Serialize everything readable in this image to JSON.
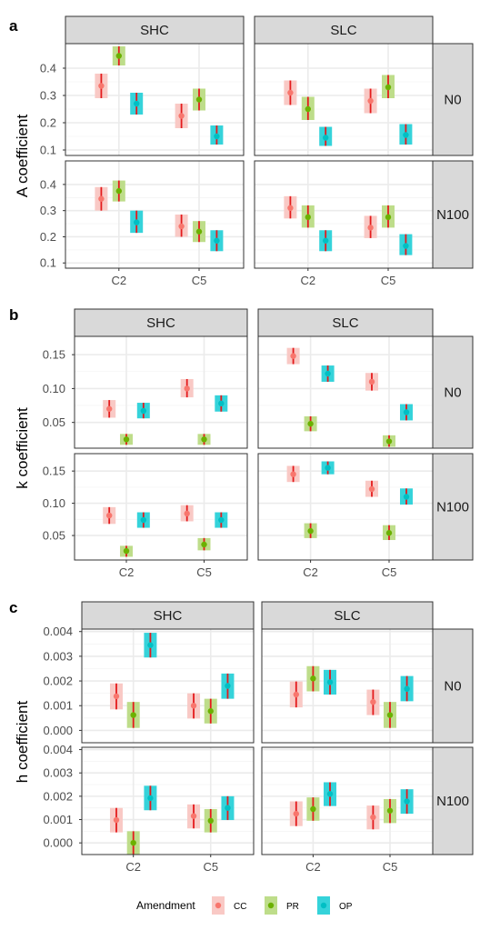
{
  "legend": {
    "title": "Amendment",
    "items": [
      {
        "label": "CC",
        "color": "#F8766D",
        "box": "#F9C9C5"
      },
      {
        "label": "PR",
        "color": "#6BB100",
        "box": "#BEDD8A"
      },
      {
        "label": "OP",
        "color": "#00BFC4",
        "box": "#35D3DA"
      }
    ]
  },
  "chart_data": [
    {
      "panel_letter": "a",
      "type": "pointrange",
      "ylabel": "A coefficient",
      "ylim": [
        0.08,
        0.49
      ],
      "yticks": [
        0.1,
        0.2,
        0.3,
        0.4
      ],
      "ytick_labels": [
        "0.1",
        "0.2",
        "0.3",
        "0.4"
      ],
      "x_categories": [
        "C2",
        "C5"
      ],
      "col_facets": [
        "SHC",
        "SLC"
      ],
      "row_facets": [
        "N0",
        "N100"
      ],
      "cells": [
        {
          "col": 0,
          "row": 0,
          "points": [
            {
              "x": "C2",
              "g": "CC",
              "y": 0.335,
              "lo": 0.29,
              "hi": 0.38
            },
            {
              "x": "C2",
              "g": "PR",
              "y": 0.445,
              "lo": 0.41,
              "hi": 0.48
            },
            {
              "x": "C2",
              "g": "OP",
              "y": 0.27,
              "lo": 0.23,
              "hi": 0.31
            },
            {
              "x": "C5",
              "g": "CC",
              "y": 0.225,
              "lo": 0.18,
              "hi": 0.27
            },
            {
              "x": "C5",
              "g": "PR",
              "y": 0.285,
              "lo": 0.245,
              "hi": 0.325
            },
            {
              "x": "C5",
              "g": "OP",
              "y": 0.15,
              "lo": 0.12,
              "hi": 0.19
            }
          ]
        },
        {
          "col": 1,
          "row": 0,
          "points": [
            {
              "x": "C2",
              "g": "CC",
              "y": 0.31,
              "lo": 0.265,
              "hi": 0.355
            },
            {
              "x": "C2",
              "g": "PR",
              "y": 0.25,
              "lo": 0.21,
              "hi": 0.295
            },
            {
              "x": "C2",
              "g": "OP",
              "y": 0.145,
              "lo": 0.115,
              "hi": 0.185
            },
            {
              "x": "C5",
              "g": "CC",
              "y": 0.28,
              "lo": 0.235,
              "hi": 0.325
            },
            {
              "x": "C5",
              "g": "PR",
              "y": 0.33,
              "lo": 0.29,
              "hi": 0.375
            },
            {
              "x": "C5",
              "g": "OP",
              "y": 0.155,
              "lo": 0.12,
              "hi": 0.195
            }
          ]
        },
        {
          "col": 0,
          "row": 1,
          "points": [
            {
              "x": "C2",
              "g": "CC",
              "y": 0.345,
              "lo": 0.3,
              "hi": 0.39
            },
            {
              "x": "C2",
              "g": "PR",
              "y": 0.375,
              "lo": 0.335,
              "hi": 0.415
            },
            {
              "x": "C2",
              "g": "OP",
              "y": 0.255,
              "lo": 0.215,
              "hi": 0.3
            },
            {
              "x": "C5",
              "g": "CC",
              "y": 0.24,
              "lo": 0.2,
              "hi": 0.285
            },
            {
              "x": "C5",
              "g": "PR",
              "y": 0.22,
              "lo": 0.18,
              "hi": 0.26
            },
            {
              "x": "C5",
              "g": "OP",
              "y": 0.185,
              "lo": 0.145,
              "hi": 0.225
            }
          ]
        },
        {
          "col": 1,
          "row": 1,
          "points": [
            {
              "x": "C2",
              "g": "CC",
              "y": 0.31,
              "lo": 0.27,
              "hi": 0.355
            },
            {
              "x": "C2",
              "g": "PR",
              "y": 0.275,
              "lo": 0.235,
              "hi": 0.32
            },
            {
              "x": "C2",
              "g": "OP",
              "y": 0.185,
              "lo": 0.145,
              "hi": 0.225
            },
            {
              "x": "C5",
              "g": "CC",
              "y": 0.235,
              "lo": 0.195,
              "hi": 0.28
            },
            {
              "x": "C5",
              "g": "PR",
              "y": 0.275,
              "lo": 0.235,
              "hi": 0.32
            },
            {
              "x": "C5",
              "g": "OP",
              "y": 0.165,
              "lo": 0.13,
              "hi": 0.21
            }
          ]
        }
      ]
    },
    {
      "panel_letter": "b",
      "type": "pointrange",
      "ylabel": "k coefficient",
      "ylim": [
        0.012,
        0.177
      ],
      "yticks": [
        0.05,
        0.1,
        0.15
      ],
      "ytick_labels": [
        "0.05",
        "0.10",
        "0.15"
      ],
      "x_categories": [
        "C2",
        "C5"
      ],
      "col_facets": [
        "SHC",
        "SLC"
      ],
      "row_facets": [
        "N0",
        "N100"
      ],
      "cells": [
        {
          "col": 0,
          "row": 0,
          "points": [
            {
              "x": "C2",
              "g": "CC",
              "y": 0.07,
              "lo": 0.057,
              "hi": 0.083
            },
            {
              "x": "C2",
              "g": "PR",
              "y": 0.025,
              "lo": 0.017,
              "hi": 0.033
            },
            {
              "x": "C2",
              "g": "OP",
              "y": 0.067,
              "lo": 0.056,
              "hi": 0.079
            },
            {
              "x": "C5",
              "g": "CC",
              "y": 0.1,
              "lo": 0.087,
              "hi": 0.114
            },
            {
              "x": "C5",
              "g": "PR",
              "y": 0.025,
              "lo": 0.017,
              "hi": 0.033
            },
            {
              "x": "C5",
              "g": "OP",
              "y": 0.078,
              "lo": 0.066,
              "hi": 0.09
            }
          ]
        },
        {
          "col": 1,
          "row": 0,
          "points": [
            {
              "x": "C2",
              "g": "CC",
              "y": 0.148,
              "lo": 0.136,
              "hi": 0.16
            },
            {
              "x": "C2",
              "g": "PR",
              "y": 0.048,
              "lo": 0.037,
              "hi": 0.059
            },
            {
              "x": "C2",
              "g": "OP",
              "y": 0.122,
              "lo": 0.11,
              "hi": 0.134
            },
            {
              "x": "C5",
              "g": "CC",
              "y": 0.11,
              "lo": 0.097,
              "hi": 0.123
            },
            {
              "x": "C5",
              "g": "PR",
              "y": 0.022,
              "lo": 0.014,
              "hi": 0.031
            },
            {
              "x": "C5",
              "g": "OP",
              "y": 0.065,
              "lo": 0.053,
              "hi": 0.077
            }
          ]
        },
        {
          "col": 0,
          "row": 1,
          "points": [
            {
              "x": "C2",
              "g": "CC",
              "y": 0.081,
              "lo": 0.068,
              "hi": 0.094
            },
            {
              "x": "C2",
              "g": "PR",
              "y": 0.026,
              "lo": 0.017,
              "hi": 0.034
            },
            {
              "x": "C2",
              "g": "OP",
              "y": 0.074,
              "lo": 0.062,
              "hi": 0.086
            },
            {
              "x": "C5",
              "g": "CC",
              "y": 0.084,
              "lo": 0.072,
              "hi": 0.097
            },
            {
              "x": "C5",
              "g": "PR",
              "y": 0.036,
              "lo": 0.027,
              "hi": 0.046
            },
            {
              "x": "C5",
              "g": "OP",
              "y": 0.074,
              "lo": 0.062,
              "hi": 0.086
            }
          ]
        },
        {
          "col": 1,
          "row": 1,
          "points": [
            {
              "x": "C2",
              "g": "CC",
              "y": 0.145,
              "lo": 0.133,
              "hi": 0.158
            },
            {
              "x": "C2",
              "g": "PR",
              "y": 0.057,
              "lo": 0.046,
              "hi": 0.069
            },
            {
              "x": "C2",
              "g": "OP",
              "y": 0.155,
              "lo": 0.145,
              "hi": 0.165
            },
            {
              "x": "C5",
              "g": "CC",
              "y": 0.122,
              "lo": 0.11,
              "hi": 0.135
            },
            {
              "x": "C5",
              "g": "PR",
              "y": 0.054,
              "lo": 0.043,
              "hi": 0.066
            },
            {
              "x": "C5",
              "g": "OP",
              "y": 0.11,
              "lo": 0.098,
              "hi": 0.123
            }
          ]
        }
      ]
    },
    {
      "panel_letter": "c",
      "type": "pointrange",
      "ylabel": "h coefficient",
      "ylim": [
        -0.0005,
        0.0041
      ],
      "yticks": [
        0,
        0.001,
        0.002,
        0.003,
        0.004
      ],
      "ytick_labels": [
        "0.000",
        "0.001",
        "0.002",
        "0.003",
        "0.004"
      ],
      "x_categories": [
        "C2",
        "C5"
      ],
      "col_facets": [
        "SHC",
        "SLC"
      ],
      "row_facets": [
        "N0",
        "N100"
      ],
      "cells": [
        {
          "col": 0,
          "row": 0,
          "points": [
            {
              "x": "C2",
              "g": "CC",
              "y": 0.00138,
              "lo": 0.00085,
              "hi": 0.0019
            },
            {
              "x": "C2",
              "g": "PR",
              "y": 0.00062,
              "lo": 0.0001,
              "hi": 0.00115
            },
            {
              "x": "C2",
              "g": "OP",
              "y": 0.00345,
              "lo": 0.00295,
              "hi": 0.00395
            },
            {
              "x": "C5",
              "g": "CC",
              "y": 0.001,
              "lo": 0.00048,
              "hi": 0.0015
            },
            {
              "x": "C5",
              "g": "PR",
              "y": 0.00078,
              "lo": 0.00028,
              "hi": 0.00128
            },
            {
              "x": "C5",
              "g": "OP",
              "y": 0.0018,
              "lo": 0.00128,
              "hi": 0.0023
            }
          ]
        },
        {
          "col": 1,
          "row": 0,
          "points": [
            {
              "x": "C2",
              "g": "CC",
              "y": 0.00145,
              "lo": 0.00093,
              "hi": 0.00198
            },
            {
              "x": "C2",
              "g": "PR",
              "y": 0.0021,
              "lo": 0.00158,
              "hi": 0.0026
            },
            {
              "x": "C2",
              "g": "OP",
              "y": 0.00195,
              "lo": 0.00145,
              "hi": 0.00245
            },
            {
              "x": "C5",
              "g": "CC",
              "y": 0.00115,
              "lo": 0.00062,
              "hi": 0.00165
            },
            {
              "x": "C5",
              "g": "PR",
              "y": 0.00062,
              "lo": 0.0001,
              "hi": 0.00115
            },
            {
              "x": "C5",
              "g": "OP",
              "y": 0.00168,
              "lo": 0.00118,
              "hi": 0.0022
            }
          ]
        },
        {
          "col": 0,
          "row": 1,
          "points": [
            {
              "x": "C2",
              "g": "CC",
              "y": 0.00098,
              "lo": 0.00045,
              "hi": 0.0015
            },
            {
              "x": "C2",
              "g": "PR",
              "y": 0.0,
              "lo": -0.0005,
              "hi": 0.0005
            },
            {
              "x": "C2",
              "g": "OP",
              "y": 0.00192,
              "lo": 0.0014,
              "hi": 0.00245
            },
            {
              "x": "C5",
              "g": "CC",
              "y": 0.00115,
              "lo": 0.00062,
              "hi": 0.00165
            },
            {
              "x": "C5",
              "g": "PR",
              "y": 0.00095,
              "lo": 0.00045,
              "hi": 0.00145
            },
            {
              "x": "C5",
              "g": "OP",
              "y": 0.0015,
              "lo": 0.00098,
              "hi": 0.002
            }
          ]
        },
        {
          "col": 1,
          "row": 1,
          "points": [
            {
              "x": "C2",
              "g": "CC",
              "y": 0.00125,
              "lo": 0.00072,
              "hi": 0.00178
            },
            {
              "x": "C2",
              "g": "PR",
              "y": 0.00145,
              "lo": 0.00095,
              "hi": 0.00195
            },
            {
              "x": "C2",
              "g": "OP",
              "y": 0.0021,
              "lo": 0.00158,
              "hi": 0.0026
            },
            {
              "x": "C5",
              "g": "CC",
              "y": 0.0011,
              "lo": 0.00058,
              "hi": 0.0016
            },
            {
              "x": "C5",
              "g": "PR",
              "y": 0.00138,
              "lo": 0.00085,
              "hi": 0.00188
            },
            {
              "x": "C5",
              "g": "OP",
              "y": 0.00178,
              "lo": 0.00125,
              "hi": 0.0023
            }
          ]
        }
      ]
    }
  ]
}
